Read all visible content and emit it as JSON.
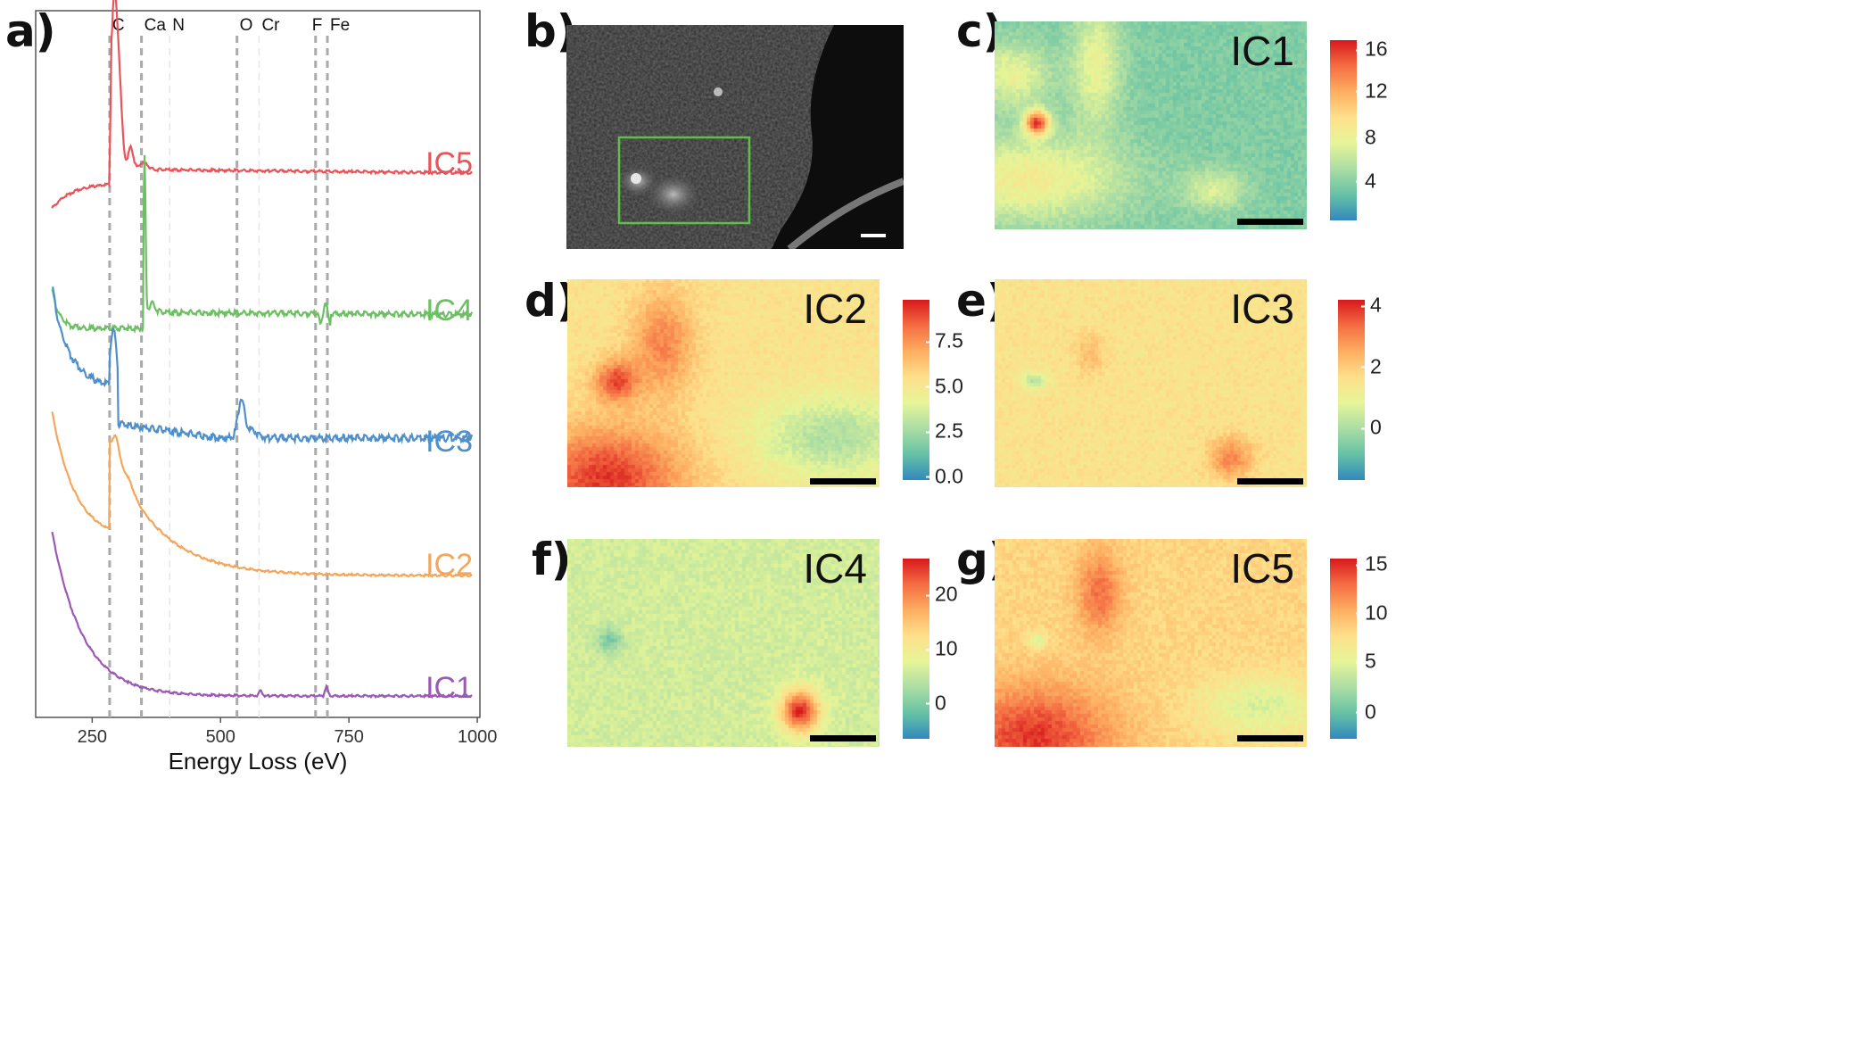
{
  "panel_labels": {
    "a": "a)",
    "b": "b)",
    "c": "c)",
    "d": "d)",
    "e": "e)",
    "f": "f)",
    "g": "g)"
  },
  "chart_data": {
    "type": "line",
    "xlabel": "Energy Loss (eV)",
    "ylabel": "",
    "xlim": [
      140,
      1005
    ],
    "x_ticks": [
      250,
      500,
      750,
      1000
    ],
    "edge_markers": [
      {
        "label": "C",
        "x": 284
      },
      {
        "label": "Ca",
        "x": 346
      },
      {
        "label": "N",
        "x": 401
      },
      {
        "label": "O",
        "x": 532
      },
      {
        "label": "Cr",
        "x": 575
      },
      {
        "label": "F",
        "x": 685
      },
      {
        "label": "Fe",
        "x": 708
      }
    ],
    "series": [
      {
        "name": "IC5",
        "color": "#e8545a"
      },
      {
        "name": "IC4",
        "color": "#6cbf62"
      },
      {
        "name": "IC3",
        "color": "#4f8fca"
      },
      {
        "name": "IC2",
        "color": "#f4a65a"
      },
      {
        "name": "IC1",
        "color": "#9c59b4"
      }
    ],
    "grid": false,
    "legend": "inline-right"
  },
  "maps": [
    {
      "id": "c",
      "title": "IC1",
      "ticks": [
        "16",
        "12",
        "8",
        "4"
      ]
    },
    {
      "id": "d",
      "title": "IC2",
      "ticks": [
        "7.5",
        "5.0",
        "2.5",
        "0.0"
      ]
    },
    {
      "id": "e",
      "title": "IC3",
      "ticks": [
        "4",
        "2",
        "0"
      ]
    },
    {
      "id": "f",
      "title": "IC4",
      "ticks": [
        "20",
        "10",
        "0"
      ]
    },
    {
      "id": "g",
      "title": "IC5",
      "ticks": [
        "15",
        "10",
        "5",
        "0"
      ]
    }
  ],
  "colors": {
    "spectral": [
      "#d7191c",
      "#f46d43",
      "#fdae61",
      "#fee08b",
      "#e6f598",
      "#abdda4",
      "#66c2a5",
      "#3288bd"
    ],
    "roi_box": "#5fbf4a"
  }
}
